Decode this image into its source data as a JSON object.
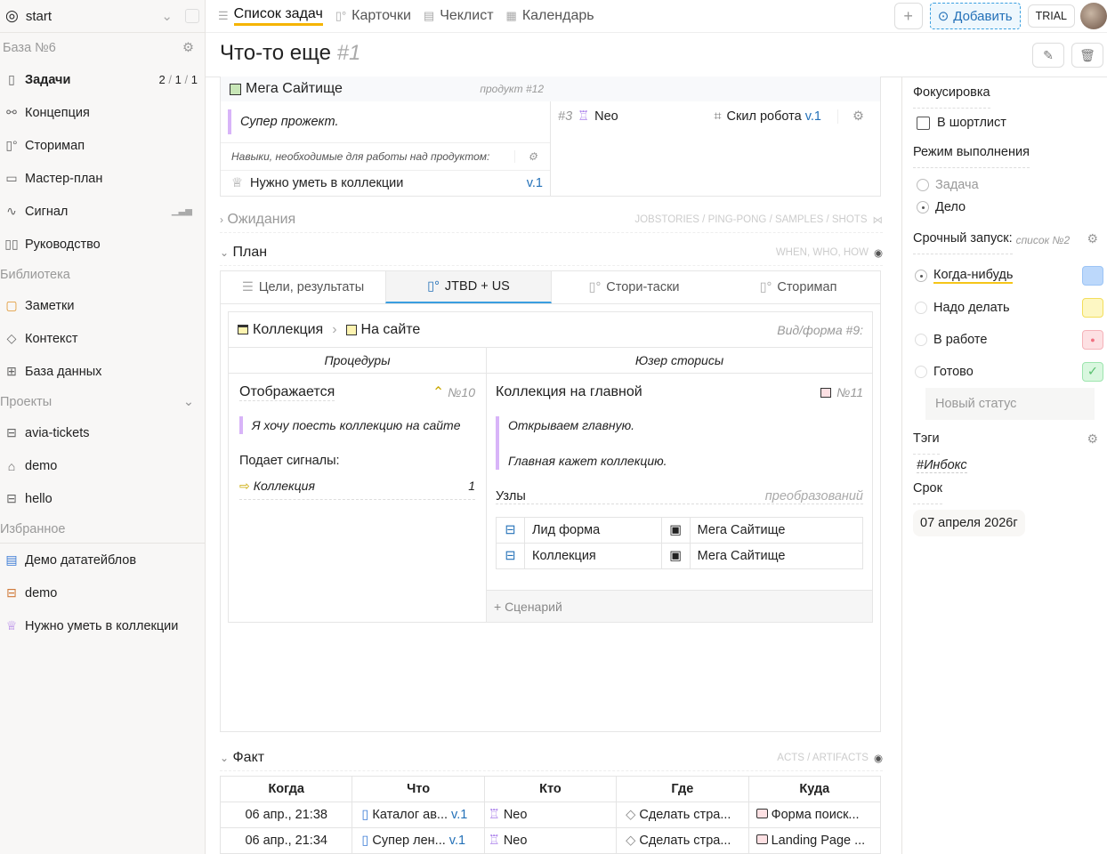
{
  "sidebar": {
    "workspace": "start",
    "base": "База №6",
    "items": [
      {
        "label": "Задачи",
        "counts": [
          "2",
          "1",
          "1"
        ]
      },
      {
        "label": "Концепция"
      },
      {
        "label": "Сторимап"
      },
      {
        "label": "Мастер-план"
      },
      {
        "label": "Сигнал"
      },
      {
        "label": "Руководство"
      }
    ],
    "library_label": "Библиотека",
    "library": [
      {
        "label": "Заметки"
      },
      {
        "label": "Контекст"
      },
      {
        "label": "База данных"
      }
    ],
    "projects_label": "Проекты",
    "projects": [
      {
        "label": "avia-tickets"
      },
      {
        "label": "demo"
      },
      {
        "label": "hello"
      }
    ],
    "favorites_label": "Избранное",
    "favorites": [
      {
        "label": "Демо дататейблов"
      },
      {
        "label": "demo"
      },
      {
        "label": "Нужно уметь в коллекции"
      }
    ]
  },
  "topbar": {
    "tabs": [
      {
        "label": "Список задач"
      },
      {
        "label": "Карточки"
      },
      {
        "label": "Чеклист"
      },
      {
        "label": "Календарь"
      }
    ],
    "add_label": "Добавить",
    "trial_label": "TRIAL"
  },
  "page": {
    "title": "Что-то еще",
    "num": "#1"
  },
  "product": {
    "name": "Мега Сайтище",
    "meta": "продукт #12",
    "desc": "Супер прожект.",
    "skills_label": "Навыки, необходимые для работы над продуктом:",
    "skill": "Нужно уметь в коллекции",
    "skill_ver": "v.1",
    "robot_num": "#3",
    "robot": "Neo",
    "robot_skill": "Скил робота",
    "robot_ver": "v.1"
  },
  "expect": {
    "label": "Ожидания",
    "hint": "JOBSTORIES / PING-PONG / SAMPLES / SHOTS"
  },
  "plan": {
    "label": "План",
    "hint": "WHEN, WHO, HOW",
    "tabs": [
      {
        "label": "Цели, результаты"
      },
      {
        "label": "JTBD + US"
      },
      {
        "label": "Стори-таски"
      },
      {
        "label": "Сторимап"
      }
    ],
    "crumb1": "Коллекция",
    "crumb2": "На сайте",
    "form": "Вид/форма #9:",
    "col1": "Процедуры",
    "col2": "Юзер сторисы",
    "proc": {
      "title": "Отображается",
      "num": "№10",
      "quote": "Я хочу поесть коллекцию на сайте",
      "signals": "Подает сигналы:",
      "signal": "Коллекция",
      "signal_count": "1"
    },
    "story": {
      "title": "Коллекция на главной",
      "num": "№11",
      "q1": "Открываем главную.",
      "q2": "Главная кажет коллекцию.",
      "nodes": "Узлы",
      "nodes_hint": "преобразований",
      "rows": [
        [
          "Лид форма",
          "Мега Сайтище"
        ],
        [
          "Коллекция",
          "Мега Сайтище"
        ]
      ],
      "add": "+ Сценарий"
    }
  },
  "fact": {
    "label": "Факт",
    "hint": "ACTS / ARTIFACTS",
    "headers": [
      "Когда",
      "Что",
      "Кто",
      "Где",
      "Куда"
    ],
    "rows": [
      {
        "when": "06 апр., 21:38",
        "what": "Каталог ав...",
        "ver": "v.1",
        "who": "Neo",
        "where": "Сделать стра...",
        "to": "Форма поиск..."
      },
      {
        "when": "06 апр., 21:34",
        "what": "Супер лен...",
        "ver": "v.1",
        "who": "Neo",
        "where": "Сделать стра...",
        "to": "Landing Page ..."
      }
    ]
  },
  "right": {
    "focus": "Фокусировка",
    "shortlist": "В шортлист",
    "mode": "Режим выполнения",
    "modes": [
      "Задача",
      "Дело"
    ],
    "launch": "Срочный запуск:",
    "launch_list": "список №2",
    "statuses": [
      {
        "label": "Когда-нибудь",
        "color": "#bcd8fb"
      },
      {
        "label": "Надо делать",
        "color": "#fdf7c3"
      },
      {
        "label": "В работе",
        "color": "#fde0e3"
      },
      {
        "label": "Готово",
        "color": "#d9f7df"
      }
    ],
    "new_status": "Новый статус",
    "tags": "Тэги",
    "tag": "#Инбокс",
    "deadline": "Срок",
    "date": "07 апреля 2026г"
  }
}
